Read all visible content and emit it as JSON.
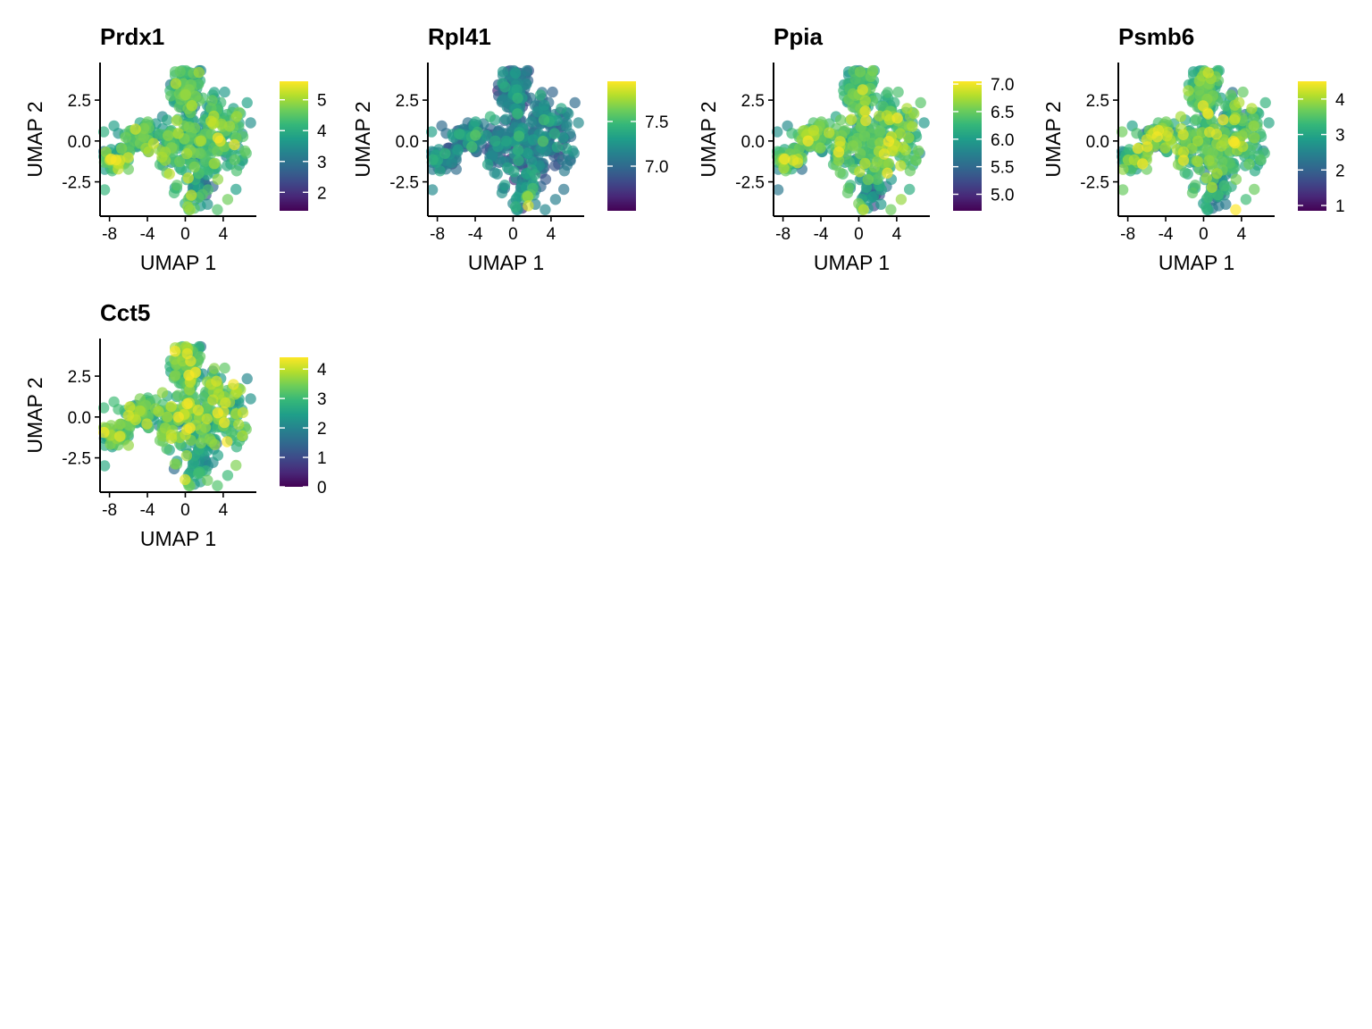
{
  "colors": {
    "viridis": [
      "#440154",
      "#482878",
      "#3E4A89",
      "#31688E",
      "#26828E",
      "#1F9E89",
      "#35B779",
      "#6DCD59",
      "#B4DE2C",
      "#FDE725"
    ],
    "axis": "#000000",
    "background": "#ffffff"
  },
  "chart_data": [
    {
      "type": "scatter",
      "title": "Prdx1",
      "xlabel": "UMAP 1",
      "ylabel": "UMAP 2",
      "xlim": [
        -9,
        7.5
      ],
      "ylim": [
        -4.6,
        4.8
      ],
      "xticks": [
        -8,
        -4,
        0,
        4
      ],
      "xtick_labels": [
        "-8",
        "-4",
        "0",
        "4"
      ],
      "yticks": [
        -2.5,
        0.0,
        2.5
      ],
      "ytick_labels": [
        "-2.5",
        "0.0",
        "2.5"
      ],
      "colorbar": {
        "min": 1.4,
        "max": 5.6,
        "ticks": [
          2,
          3,
          4,
          5
        ],
        "tick_labels": [
          "2",
          "3",
          "4",
          "5"
        ]
      },
      "expression_mean": 4.1,
      "expression_sd": 0.55,
      "low_region": {
        "x": 2.2,
        "y": -2.8,
        "r": 1.6,
        "shift": -1.4
      }
    },
    {
      "type": "scatter",
      "title": "Rpl41",
      "xlabel": "UMAP 1",
      "ylabel": "UMAP 2",
      "xlim": [
        -9,
        7.5
      ],
      "ylim": [
        -4.6,
        4.8
      ],
      "xticks": [
        -8,
        -4,
        0,
        4
      ],
      "xtick_labels": [
        "-8",
        "-4",
        "0",
        "4"
      ],
      "yticks": [
        -2.5,
        0.0,
        2.5
      ],
      "ytick_labels": [
        "-2.5",
        "0.0",
        "2.5"
      ],
      "colorbar": {
        "min": 6.5,
        "max": 7.95,
        "ticks": [
          7.0,
          7.5
        ],
        "tick_labels": [
          "7.0",
          "7.5"
        ]
      },
      "expression_mean": 7.05,
      "expression_sd": 0.18,
      "low_region": {
        "x": 1.5,
        "y": -3.6,
        "r": 1.4,
        "shift": 0.55
      }
    },
    {
      "type": "scatter",
      "title": "Ppia",
      "xlabel": "UMAP 1",
      "ylabel": "UMAP 2",
      "xlim": [
        -9,
        7.5
      ],
      "ylim": [
        -4.6,
        4.8
      ],
      "xticks": [
        -8,
        -4,
        0,
        4
      ],
      "xtick_labels": [
        "-8",
        "-4",
        "0",
        "4"
      ],
      "yticks": [
        -2.5,
        0.0,
        2.5
      ],
      "ytick_labels": [
        "-2.5",
        "0.0",
        "2.5"
      ],
      "colorbar": {
        "min": 4.7,
        "max": 7.05,
        "ticks": [
          5.0,
          5.5,
          6.0,
          6.5,
          7.0
        ],
        "tick_labels": [
          "5.0",
          "5.5",
          "6.0",
          "6.5",
          "7.0"
        ]
      },
      "expression_mean": 6.3,
      "expression_sd": 0.3,
      "low_region": {
        "x": 1.6,
        "y": -3.2,
        "r": 1.6,
        "shift": -1.1
      }
    },
    {
      "type": "scatter",
      "title": "Psmb6",
      "xlabel": "UMAP 1",
      "ylabel": "UMAP 2",
      "xlim": [
        -9,
        7.5
      ],
      "ylim": [
        -4.6,
        4.8
      ],
      "xticks": [
        -8,
        -4,
        0,
        4
      ],
      "xtick_labels": [
        "-8",
        "-4",
        "0",
        "4"
      ],
      "yticks": [
        -2.5,
        0.0,
        2.5
      ],
      "ytick_labels": [
        "-2.5",
        "0.0",
        "2.5"
      ],
      "colorbar": {
        "min": 0.85,
        "max": 4.5,
        "ticks": [
          1,
          2,
          3,
          4
        ],
        "tick_labels": [
          "1",
          "2",
          "3",
          "4"
        ]
      },
      "expression_mean": 3.3,
      "expression_sd": 0.55,
      "low_region": {
        "x": 1.8,
        "y": -3.2,
        "r": 1.5,
        "shift": -1.0
      }
    },
    {
      "type": "scatter",
      "title": "Cct5",
      "xlabel": "UMAP 1",
      "ylabel": "UMAP 2",
      "xlim": [
        -9,
        7.5
      ],
      "ylim": [
        -4.6,
        4.8
      ],
      "xticks": [
        -8,
        -4,
        0,
        4
      ],
      "xtick_labels": [
        "-8",
        "-4",
        "0",
        "4"
      ],
      "yticks": [
        -2.5,
        0.0,
        2.5
      ],
      "ytick_labels": [
        "-2.5",
        "0.0",
        "2.5"
      ],
      "colorbar": {
        "min": 0.0,
        "max": 4.4,
        "ticks": [
          0,
          1,
          2,
          3,
          4
        ],
        "tick_labels": [
          "0",
          "1",
          "2",
          "3",
          "4"
        ]
      },
      "expression_mean": 3.0,
      "expression_sd": 0.6,
      "low_region": {
        "x": 2.0,
        "y": -2.8,
        "r": 1.6,
        "shift": -0.9
      }
    }
  ]
}
